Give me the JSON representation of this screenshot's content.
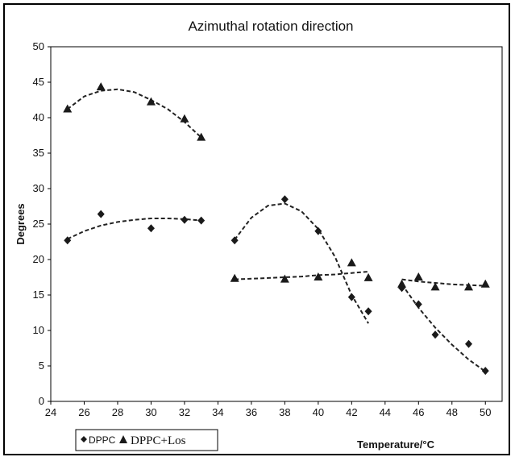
{
  "chart_data": {
    "type": "scatter",
    "title": "Azimuthal rotation direction",
    "xlabel": "Temperature/°C",
    "ylabel": "Degrees",
    "xlim": [
      24,
      51
    ],
    "ylim": [
      0,
      50
    ],
    "xticks": [
      24,
      26,
      28,
      30,
      32,
      34,
      36,
      38,
      40,
      42,
      44,
      46,
      48,
      50
    ],
    "yticks": [
      0,
      5,
      10,
      15,
      20,
      25,
      30,
      35,
      40,
      45,
      50
    ],
    "grid": false,
    "legend_position": "bottom-left",
    "series": [
      {
        "name": "DPPC",
        "marker": "diamond",
        "color": "#1a1a1a",
        "points": [
          [
            25,
            22.7
          ],
          [
            27,
            26.4
          ],
          [
            30,
            24.4
          ],
          [
            32,
            25.6
          ],
          [
            33,
            25.5
          ],
          [
            35,
            22.7
          ],
          [
            38,
            28.5
          ],
          [
            40,
            24.0
          ],
          [
            42,
            14.7
          ],
          [
            43,
            12.7
          ],
          [
            45,
            16.0
          ],
          [
            46,
            13.7
          ],
          [
            47,
            9.4
          ],
          [
            49,
            8.1
          ],
          [
            50,
            4.3
          ]
        ],
        "trendlines": [
          [
            [
              25,
              22.9
            ],
            [
              26,
              24.0
            ],
            [
              27,
              24.8
            ],
            [
              28,
              25.3
            ],
            [
              29,
              25.6
            ],
            [
              30,
              25.8
            ],
            [
              31,
              25.8
            ],
            [
              32,
              25.7
            ],
            [
              33,
              25.5
            ]
          ],
          [
            [
              35,
              22.8
            ],
            [
              36,
              25.9
            ],
            [
              37,
              27.6
            ],
            [
              38,
              27.9
            ],
            [
              39,
              26.8
            ],
            [
              40,
              24.3
            ],
            [
              41,
              20.4
            ],
            [
              42,
              15.0
            ],
            [
              43,
              11.0
            ]
          ],
          [
            [
              45,
              16.5
            ],
            [
              46,
              13.2
            ],
            [
              47,
              10.4
            ],
            [
              48,
              8.0
            ],
            [
              49,
              5.9
            ],
            [
              50,
              4.2
            ]
          ]
        ]
      },
      {
        "name": "DPPC+Los",
        "marker": "triangle",
        "color": "#1a1a1a",
        "points": [
          [
            25,
            41.2
          ],
          [
            27,
            44.3
          ],
          [
            30,
            42.2
          ],
          [
            32,
            39.8
          ],
          [
            33,
            37.2
          ],
          [
            35,
            17.3
          ],
          [
            38,
            17.2
          ],
          [
            40,
            17.5
          ],
          [
            42,
            19.5
          ],
          [
            43,
            17.4
          ],
          [
            45,
            16.5
          ],
          [
            46,
            17.5
          ],
          [
            47,
            16.1
          ],
          [
            49,
            16.1
          ],
          [
            50,
            16.5
          ]
        ],
        "trendlines": [
          [
            [
              25,
              41.2
            ],
            [
              26,
              43.0
            ],
            [
              27,
              43.8
            ],
            [
              28,
              44.0
            ],
            [
              29,
              43.6
            ],
            [
              30,
              42.5
            ],
            [
              31,
              41.2
            ],
            [
              32,
              39.4
            ],
            [
              33,
              37.2
            ]
          ],
          [
            [
              35,
              17.2
            ],
            [
              36,
              17.3
            ],
            [
              37,
              17.4
            ],
            [
              38,
              17.5
            ],
            [
              39,
              17.6
            ],
            [
              40,
              17.8
            ],
            [
              41,
              17.9
            ],
            [
              42,
              18.1
            ],
            [
              43,
              18.3
            ]
          ],
          [
            [
              45,
              17.2
            ],
            [
              46,
              16.9
            ],
            [
              47,
              16.7
            ],
            [
              48,
              16.5
            ],
            [
              49,
              16.4
            ],
            [
              50,
              16.3
            ]
          ]
        ]
      }
    ]
  },
  "legend": {
    "dppc_label": "DPPC",
    "dppc_los_label": "DPPC+Los"
  }
}
